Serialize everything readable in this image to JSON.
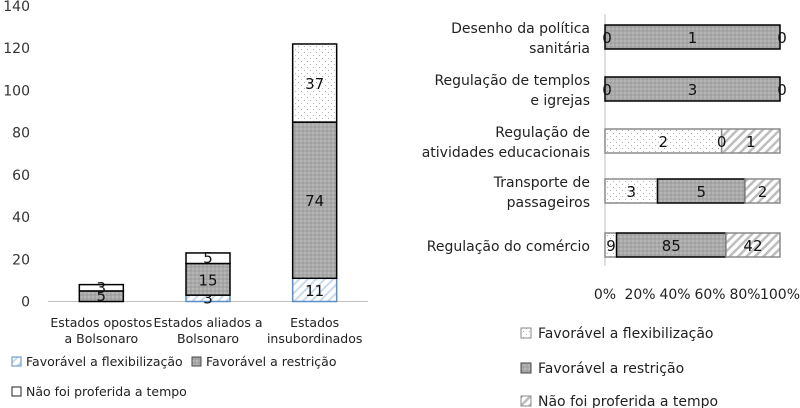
{
  "chart_data": [
    {
      "type": "bar",
      "stacked": true,
      "categories": [
        "Estados opostos a Bolsonaro",
        "Estados aliados a Bolsonaro",
        "Estados insubordinados"
      ],
      "category_lines": [
        [
          "Estados opostos",
          "a Bolsonaro"
        ],
        [
          "Estados aliados a",
          "Bolsonaro"
        ],
        [
          "Estados",
          "insubordinados"
        ]
      ],
      "ylim": [
        0,
        140
      ],
      "yticks": [
        0,
        20,
        40,
        60,
        80,
        100,
        120,
        140
      ],
      "series": [
        {
          "name": "Favorável a flexibilização",
          "values": [
            0,
            3,
            11
          ],
          "labels": [
            "",
            "3",
            "11"
          ]
        },
        {
          "name": "Favorável a restrição",
          "values": [
            5,
            15,
            74
          ],
          "labels": [
            "5",
            "15",
            "74"
          ]
        },
        {
          "name": "Não foi proferida a tempo",
          "values": [
            3,
            5,
            37
          ],
          "labels": [
            "3",
            "5",
            "37"
          ]
        }
      ],
      "legend": "bottom"
    },
    {
      "type": "bar",
      "orientation": "horizontal",
      "stacked_percent": true,
      "categories": [
        "Desenho da política sanitária",
        "Regulação de templos e igrejas",
        "Regulação de atividades educacionais",
        "Transporte de passageiros",
        "Regulação do comércio"
      ],
      "category_lines": [
        [
          "Desenho da política",
          "sanitária"
        ],
        [
          "Regulação de templos",
          "e igrejas"
        ],
        [
          "Regulação de",
          "atividades educacionais"
        ],
        [
          "Transporte de",
          "passageiros"
        ],
        [
          "Regulação do comércio"
        ]
      ],
      "xticks": [
        "0%",
        "20%",
        "40%",
        "60%",
        "80%",
        "100%"
      ],
      "series": [
        {
          "name": "Favorável a flexibilização",
          "values": [
            0,
            0,
            2,
            3,
            9
          ]
        },
        {
          "name": "Favorável a restrição",
          "values": [
            1,
            3,
            0,
            5,
            85
          ]
        },
        {
          "name": "Não foi proferida a tempo",
          "values": [
            0,
            0,
            1,
            2,
            42
          ]
        }
      ],
      "legend": "bottom"
    }
  ],
  "colors": {
    "flex_stroke": "#5b8ec4",
    "restr_fill": "#a6a6a6",
    "late_stroke": "#222222",
    "right_flex_fill": "#f4f4f4",
    "right_late_stroke": "#a6a6a6"
  }
}
